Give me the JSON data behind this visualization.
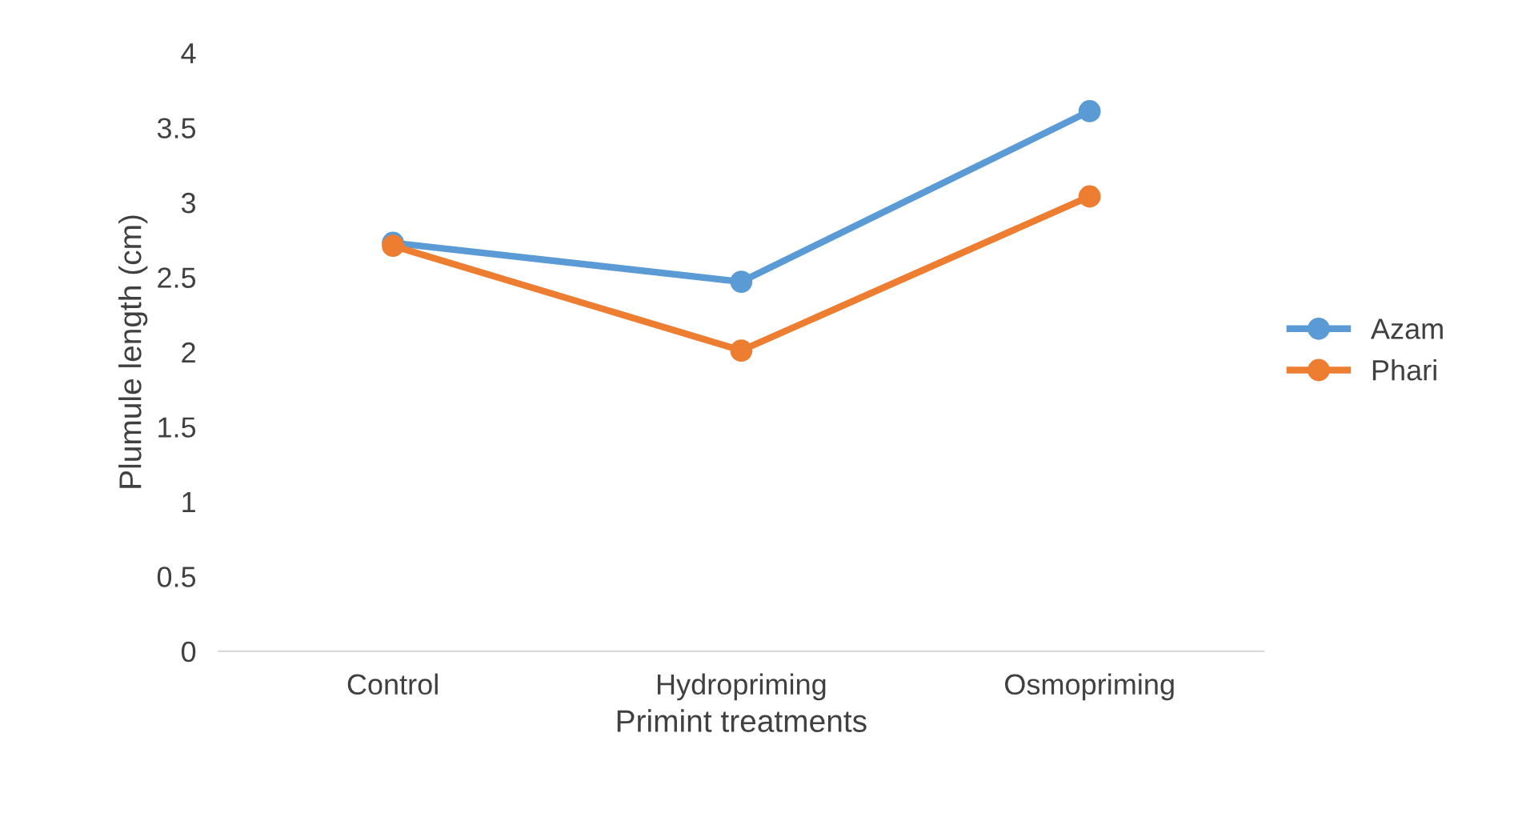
{
  "chart_data": {
    "type": "line",
    "xlabel": "Primint treatments",
    "ylabel": "Plumule length (cm)",
    "categories": [
      "Control",
      "Hydropriming",
      "Osmopriming"
    ],
    "series": [
      {
        "name": "Azam",
        "color": "#5b9bd5",
        "values": [
          2.73,
          2.47,
          3.61
        ]
      },
      {
        "name": "Phari",
        "color": "#ed7d31",
        "values": [
          2.71,
          2.01,
          3.04
        ]
      }
    ],
    "ylim": [
      0,
      4
    ],
    "yticks": [
      0,
      0.5,
      1,
      1.5,
      2,
      2.5,
      3,
      3.5,
      4
    ],
    "grid": false,
    "legend": "right",
    "marker": "circle",
    "line_style": "solid"
  }
}
